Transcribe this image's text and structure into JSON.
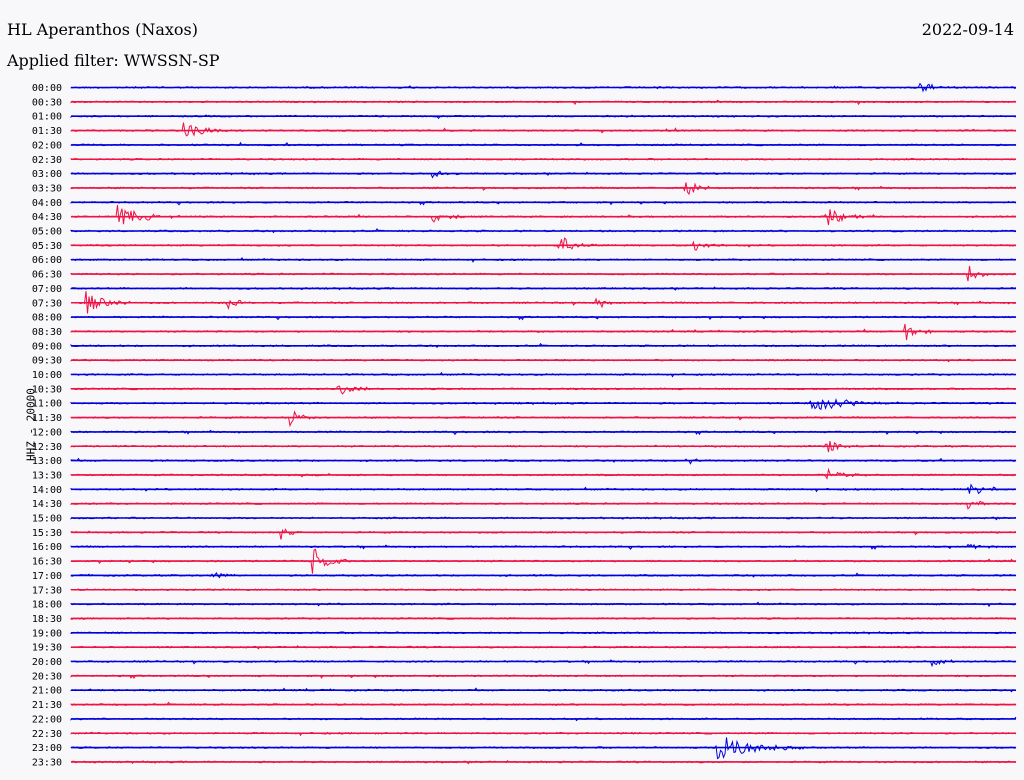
{
  "header": {
    "station": "HL Aperanthos (Naxos)",
    "date": "2022-09-14",
    "filter_label": "Applied filter: WWSSN-SP"
  },
  "chart_data": {
    "type": "line",
    "title": "HL Aperanthos (Naxos)",
    "ylabel": "HHZ - 20000",
    "colors": [
      "#0000dd",
      "#ee1144"
    ],
    "row_labels": [
      "00:00",
      "00:30",
      "01:00",
      "01:30",
      "02:00",
      "02:30",
      "03:00",
      "03:30",
      "04:00",
      "04:30",
      "05:00",
      "05:30",
      "06:00",
      "06:30",
      "07:00",
      "07:30",
      "08:00",
      "08:30",
      "09:00",
      "09:30",
      "10:00",
      "10:30",
      "11:00",
      "11:30",
      "12:00",
      "12:30",
      "13:00",
      "13:30",
      "14:00",
      "14:30",
      "15:00",
      "15:30",
      "16:00",
      "16:30",
      "17:00",
      "17:30",
      "18:00",
      "18:30",
      "19:00",
      "19:30",
      "20:00",
      "20:30",
      "21:00",
      "21:30",
      "22:00",
      "22:30",
      "23:00",
      "23:30"
    ],
    "row_minutes": 30,
    "events": [
      {
        "row": 0,
        "minute": 27.0,
        "amp": 5,
        "dur": 1.2
      },
      {
        "row": 3,
        "minute": 3.6,
        "amp": 9,
        "dur": 1.5
      },
      {
        "row": 6,
        "minute": 11.5,
        "amp": 4,
        "dur": 1.2
      },
      {
        "row": 7,
        "minute": 19.5,
        "amp": 8,
        "dur": 1.2
      },
      {
        "row": 9,
        "minute": 1.5,
        "amp": 12,
        "dur": 2.0
      },
      {
        "row": 9,
        "minute": 11.5,
        "amp": 6,
        "dur": 1.5
      },
      {
        "row": 9,
        "minute": 24.0,
        "amp": 10,
        "dur": 1.5
      },
      {
        "row": 11,
        "minute": 15.5,
        "amp": 12,
        "dur": 1.2
      },
      {
        "row": 11,
        "minute": 19.8,
        "amp": 6,
        "dur": 1.0
      },
      {
        "row": 13,
        "minute": 28.5,
        "amp": 10,
        "dur": 0.8
      },
      {
        "row": 15,
        "minute": 0.5,
        "amp": 12,
        "dur": 1.5
      },
      {
        "row": 15,
        "minute": 5.0,
        "amp": 9,
        "dur": 0.8
      },
      {
        "row": 15,
        "minute": 16.7,
        "amp": 8,
        "dur": 0.6
      },
      {
        "row": 17,
        "minute": 26.5,
        "amp": 9,
        "dur": 1.0
      },
      {
        "row": 21,
        "minute": 8.5,
        "amp": 8,
        "dur": 1.2
      },
      {
        "row": 22,
        "minute": 23.5,
        "amp": 8,
        "dur": 3.0
      },
      {
        "row": 23,
        "minute": 7.0,
        "amp": 7,
        "dur": 1.0
      },
      {
        "row": 25,
        "minute": 24.0,
        "amp": 8,
        "dur": 1.0
      },
      {
        "row": 26,
        "minute": 19.5,
        "amp": 7,
        "dur": 0.5
      },
      {
        "row": 27,
        "minute": 24.0,
        "amp": 6,
        "dur": 1.5
      },
      {
        "row": 28,
        "minute": 28.5,
        "amp": 9,
        "dur": 1.2
      },
      {
        "row": 29,
        "minute": 28.5,
        "amp": 7,
        "dur": 1.0
      },
      {
        "row": 31,
        "minute": 6.7,
        "amp": 6,
        "dur": 1.0
      },
      {
        "row": 32,
        "minute": 28.5,
        "amp": 4,
        "dur": 1.0
      },
      {
        "row": 33,
        "minute": 7.7,
        "amp": 14,
        "dur": 1.2
      },
      {
        "row": 34,
        "minute": 4.5,
        "amp": 5,
        "dur": 1.0
      },
      {
        "row": 40,
        "minute": 27.3,
        "amp": 6,
        "dur": 1.2
      },
      {
        "row": 46,
        "minute": 20.5,
        "amp": 14,
        "dur": 3.0
      }
    ]
  }
}
